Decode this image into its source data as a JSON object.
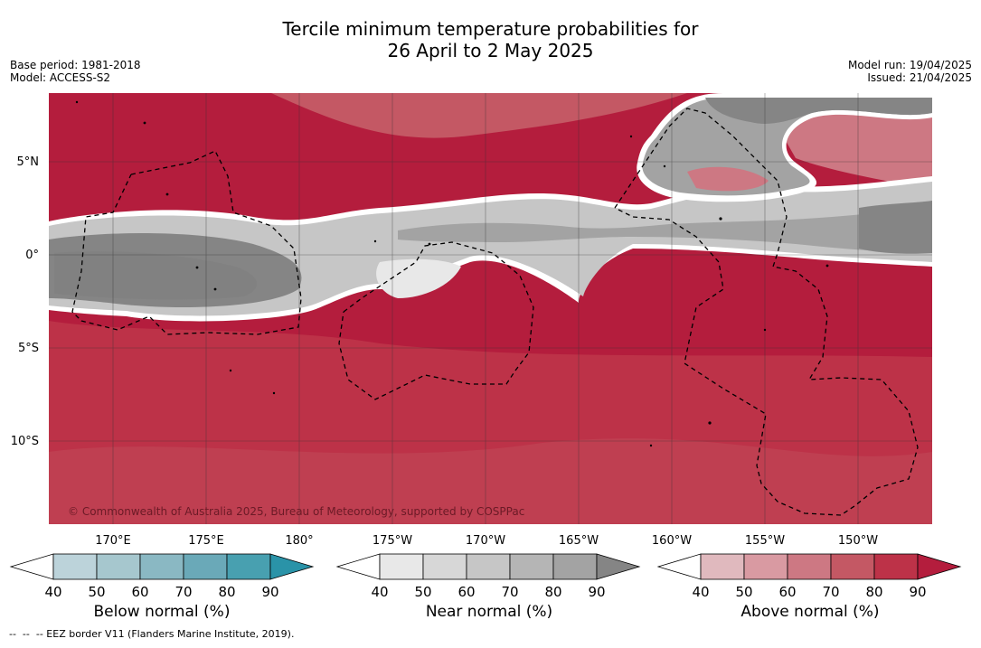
{
  "title_line1": "Tercile minimum temperature probabilities for",
  "title_line2": "26 April to 2 May 2025",
  "meta_left": [
    "Base period: 1981-2018",
    "Model: ACCESS-S2"
  ],
  "meta_right": [
    "Model run: 19/04/2025",
    "Issued: 21/04/2025"
  ],
  "lat_labels": [
    "5°N",
    "0°",
    "5°S",
    "10°S"
  ],
  "lon_labels": [
    "170°E",
    "175°E",
    "180°",
    "175°W",
    "170°W",
    "165°W",
    "160°W",
    "155°W",
    "150°W"
  ],
  "copyright": "© Commonwealth of Australia 2025, Bureau of Meteorology, supported by COSPPac",
  "colorbars": [
    {
      "label": "Below normal (%)",
      "ticks": [
        "40",
        "50",
        "60",
        "70",
        "80",
        "90"
      ],
      "colors": [
        "#ffffff",
        "#bcd3da",
        "#a6c7ce",
        "#8ab8c3",
        "#6aa9b8",
        "#48a0b0",
        "#2a93a8"
      ]
    },
    {
      "label": "Near normal (%)",
      "ticks": [
        "40",
        "50",
        "60",
        "70",
        "80",
        "90"
      ],
      "colors": [
        "#ffffff",
        "#e8e8e8",
        "#d7d7d7",
        "#c6c6c6",
        "#b5b5b5",
        "#a3a3a3",
        "#858585"
      ]
    },
    {
      "label": "Above normal (%)",
      "ticks": [
        "40",
        "50",
        "60",
        "70",
        "80",
        "90"
      ],
      "colors": [
        "#ffffff",
        "#e0b9be",
        "#d99aa2",
        "#cd7883",
        "#c45864",
        "#bd3248",
        "#b41d3d"
      ]
    }
  ],
  "footnote": "--  --  -- EEZ border V11 (Flanders Marine Institute, 2019)."
}
